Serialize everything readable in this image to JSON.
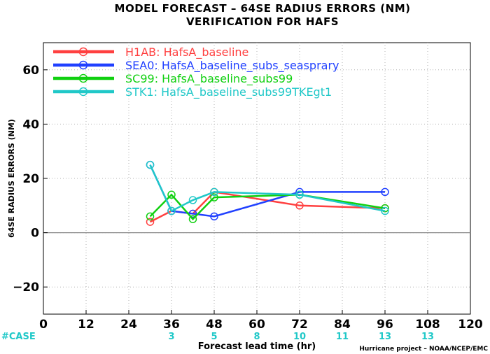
{
  "chart_data": {
    "type": "line",
    "title": "MODEL FORECAST – 64SE RADIUS ERRORS (NM)",
    "subtitle": "VERIFICATION FOR HAFS",
    "xlabel": "Forecast lead time (hr)",
    "ylabel": "64SE RADIUS ERRORS (NM)",
    "xlim": [
      0,
      120
    ],
    "ylim": [
      -30,
      70
    ],
    "x_ticks": [
      0,
      12,
      24,
      36,
      48,
      60,
      72,
      84,
      96,
      108,
      120
    ],
    "y_ticks": [
      -20,
      0,
      20,
      40,
      60
    ],
    "grid": true,
    "legend_position": "top-left",
    "series": [
      {
        "name": "H1AB: HafsA_baseline",
        "color": "#ff4040",
        "x": [
          30,
          36,
          42,
          48,
          72,
          96
        ],
        "y": [
          4,
          8,
          7,
          15,
          10,
          9
        ]
      },
      {
        "name": "SEA0: HafsA_baseline_subs_seasprary",
        "color": "#2040ff",
        "x": [
          30,
          36,
          42,
          48,
          72,
          96
        ],
        "y": [
          25,
          8,
          7,
          6,
          15,
          15
        ]
      },
      {
        "name": "SC99: HafsA_baseline_subs99",
        "color": "#10d010",
        "x": [
          30,
          36,
          42,
          48,
          72,
          96
        ],
        "y": [
          6,
          14,
          5,
          13,
          14,
          9
        ]
      },
      {
        "name": "STK1: HafsA_baseline_subs99TKEgt1",
        "color": "#20c8c8",
        "x": [
          30,
          36,
          42,
          48,
          72,
          96
        ],
        "y": [
          25,
          8,
          12,
          15,
          14,
          8
        ]
      }
    ],
    "case_label": "#CASE",
    "case_color": "#20c8c8",
    "case_counts": [
      {
        "x": 36,
        "n": "3"
      },
      {
        "x": 48,
        "n": "5"
      },
      {
        "x": 60,
        "n": "8"
      },
      {
        "x": 72,
        "n": "10"
      },
      {
        "x": 84,
        "n": "11"
      },
      {
        "x": 96,
        "n": "13"
      },
      {
        "x": 108,
        "n": "13"
      }
    ],
    "credit": "Hurricane project – NOAA/NCEP/EMC"
  }
}
